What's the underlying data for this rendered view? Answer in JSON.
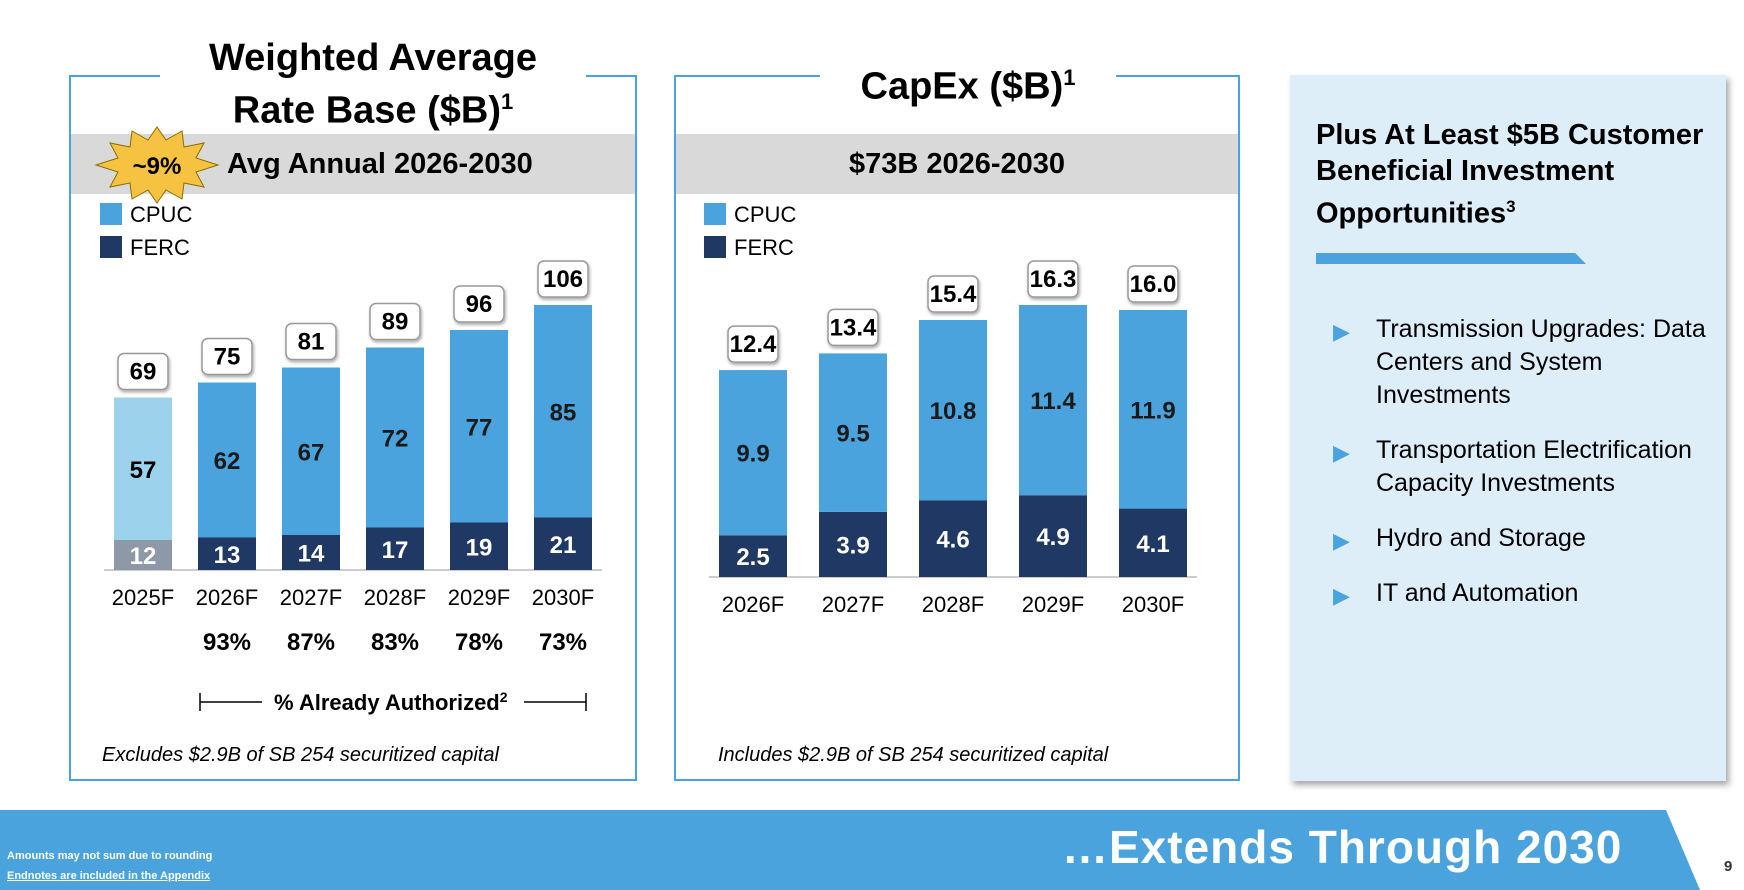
{
  "left_panel": {
    "title_line1": "Weighted Average",
    "title_line2": "Rate Base ($B)",
    "title_sup": "1",
    "badge": "~9%",
    "band_text": "Avg Annual 2026-2030",
    "footnote": "Excludes $2.9B of SB 254 securitized capital",
    "authorized_label": "% Already Authorized",
    "authorized_sup": "2"
  },
  "middle_panel": {
    "title": "CapEx ($B)",
    "title_sup": "1",
    "band_text": "$73B 2026-2030",
    "footnote": "Includes $2.9B of SB 254 securitized capital"
  },
  "right_panel": {
    "title": "Plus At Least $5B Customer Beneficial Investment Opportunities",
    "title_sup": "3",
    "bullets": [
      "Transmission Upgrades: Data Centers and System Investments",
      "Transportation Electrification Capacity Investments",
      "Hydro and Storage",
      "IT and Automation"
    ]
  },
  "footer": {
    "note1": "Amounts may not sum due to rounding",
    "note2": "Endnotes are included in the Appendix",
    "headline": "…Extends Through 2030",
    "page_number": "9"
  },
  "colors": {
    "cpuc": "#4aa3dc",
    "ferc": "#1f3864",
    "cpuc_2025": "#9dd2ec",
    "ferc_2025": "#8e99a8",
    "badge": "#f5c242"
  },
  "chart_data": [
    {
      "type": "bar",
      "stacked": true,
      "categories": [
        "2025F",
        "2026F",
        "2027F",
        "2028F",
        "2029F",
        "2030F"
      ],
      "series": [
        {
          "name": "FERC",
          "values": [
            12,
            13,
            14,
            17,
            19,
            21
          ]
        },
        {
          "name": "CPUC",
          "values": [
            57,
            62,
            67,
            72,
            77,
            85
          ]
        }
      ],
      "totals": [
        69,
        75,
        81,
        89,
        96,
        106
      ],
      "authorized_pct": [
        "",
        "93%",
        "87%",
        "83%",
        "78%",
        "73%"
      ],
      "ylim": [
        0,
        106
      ],
      "legend": [
        "CPUC",
        "FERC"
      ],
      "legend_position": "top-left"
    },
    {
      "type": "bar",
      "stacked": true,
      "categories": [
        "2026F",
        "2027F",
        "2028F",
        "2029F",
        "2030F"
      ],
      "series": [
        {
          "name": "FERC",
          "values": [
            2.5,
            3.9,
            4.6,
            4.9,
            4.1
          ]
        },
        {
          "name": "CPUC",
          "values": [
            9.9,
            9.5,
            10.8,
            11.4,
            11.9
          ]
        }
      ],
      "totals": [
        "12.4",
        "13.4",
        "15.4",
        "16.3",
        "16.0"
      ],
      "ylim": [
        0,
        16.3
      ],
      "legend": [
        "CPUC",
        "FERC"
      ],
      "legend_position": "top-left"
    }
  ]
}
